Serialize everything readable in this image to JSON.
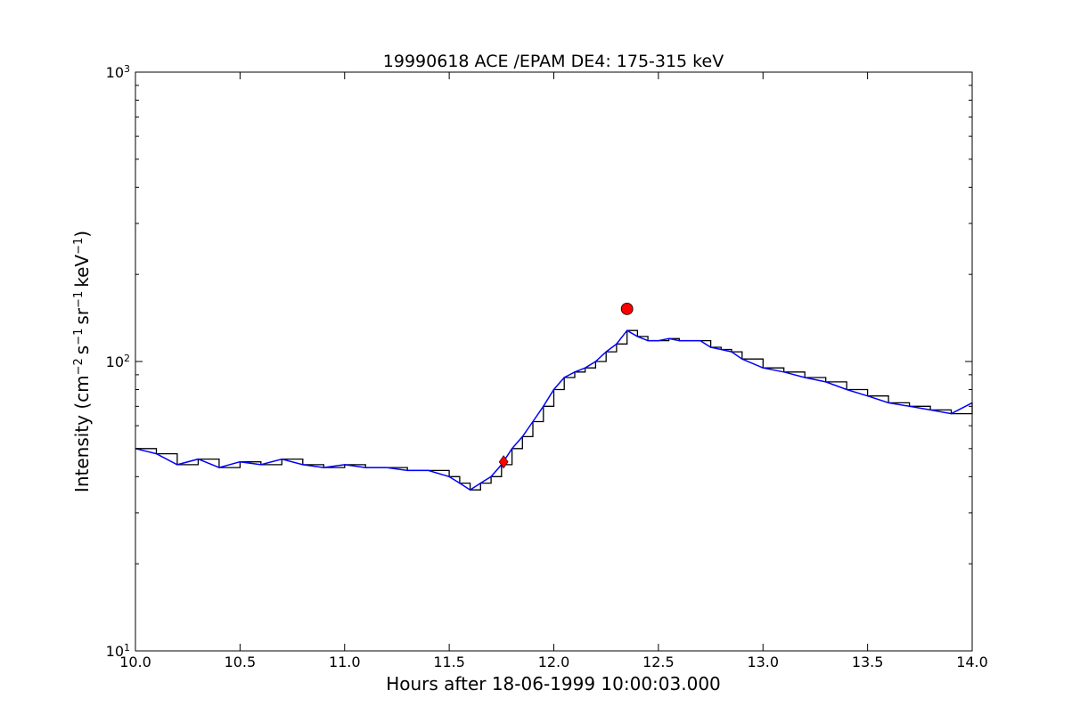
{
  "chart_data": {
    "type": "line",
    "title": "19990618 ACE /EPAM DE4: 175-315 keV",
    "xlabel": "Hours after 18-06-1999 10:00:03.000",
    "ylabel": {
      "prefix": "Intensity (cm",
      "exp1": "−2",
      "s": "s",
      "exp2": "−1",
      "sr": "sr",
      "exp3": "−1",
      "kev": "keV",
      "exp4": "−1",
      "suffix": ")"
    },
    "xlim": [
      10.0,
      14.0
    ],
    "ylim": [
      10,
      1000
    ],
    "yscale": "log",
    "grid": false,
    "x_ticks": [
      "10.0",
      "10.5",
      "11.0",
      "11.5",
      "12.0",
      "12.5",
      "13.0",
      "13.5",
      "14.0"
    ],
    "y_ticks": [
      {
        "base": "10",
        "exp": "1"
      },
      {
        "base": "10",
        "exp": "2"
      },
      {
        "base": "10",
        "exp": "3"
      }
    ],
    "series": [
      {
        "color": "#000000",
        "style": "raw intensity (step + line)",
        "x": [
          10.0,
          10.1,
          10.2,
          10.3,
          10.4,
          10.5,
          10.6,
          10.7,
          10.8,
          10.9,
          11.0,
          11.1,
          11.2,
          11.3,
          11.4,
          11.5,
          11.55,
          11.6,
          11.65,
          11.7,
          11.75,
          11.8,
          11.85,
          11.9,
          11.95,
          12.0,
          12.05,
          12.1,
          12.15,
          12.2,
          12.25,
          12.3,
          12.35,
          12.4,
          12.45,
          12.5,
          12.55,
          12.6,
          12.65,
          12.7,
          12.75,
          12.8,
          12.85,
          12.9,
          13.0,
          13.1,
          13.2,
          13.3,
          13.4,
          13.5,
          13.6,
          13.7,
          13.8,
          13.9,
          14.0
        ],
        "y": [
          50,
          48,
          44,
          46,
          43,
          45,
          44,
          46,
          44,
          43,
          44,
          43,
          43,
          42,
          42,
          40,
          38,
          36,
          38,
          40,
          44,
          50,
          55,
          62,
          70,
          80,
          88,
          92,
          95,
          100,
          108,
          115,
          128,
          122,
          118,
          118,
          120,
          118,
          118,
          118,
          112,
          110,
          108,
          102,
          95,
          92,
          88,
          85,
          80,
          76,
          72,
          70,
          68,
          66,
          72
        ]
      },
      {
        "color": "#0000ff",
        "style": "smoothed intensity",
        "x": [
          10.0,
          10.1,
          10.2,
          10.3,
          10.4,
          10.5,
          10.6,
          10.7,
          10.8,
          10.9,
          11.0,
          11.1,
          11.2,
          11.3,
          11.4,
          11.5,
          11.55,
          11.6,
          11.65,
          11.7,
          11.75,
          11.8,
          11.85,
          11.9,
          11.95,
          12.0,
          12.05,
          12.1,
          12.15,
          12.2,
          12.25,
          12.3,
          12.35,
          12.4,
          12.45,
          12.5,
          12.55,
          12.6,
          12.65,
          12.7,
          12.75,
          12.8,
          12.85,
          12.9,
          13.0,
          13.1,
          13.2,
          13.3,
          13.4,
          13.5,
          13.6,
          13.7,
          13.8,
          13.9,
          14.0
        ],
        "y": [
          50,
          48,
          44,
          46,
          43,
          45,
          44,
          46,
          44,
          43,
          44,
          43,
          43,
          42,
          42,
          40,
          38,
          36,
          38,
          40,
          44,
          50,
          55,
          62,
          70,
          80,
          88,
          92,
          95,
          100,
          108,
          115,
          128,
          122,
          118,
          118,
          120,
          118,
          118,
          118,
          112,
          110,
          108,
          102,
          95,
          92,
          88,
          85,
          80,
          76,
          72,
          70,
          68,
          66,
          72
        ]
      }
    ],
    "markers": [
      {
        "shape": "diamond",
        "color": "#ff0000",
        "x": 11.76,
        "y": 45
      },
      {
        "shape": "circle",
        "color": "#ff0000",
        "x": 12.35,
        "y": 152
      }
    ]
  }
}
